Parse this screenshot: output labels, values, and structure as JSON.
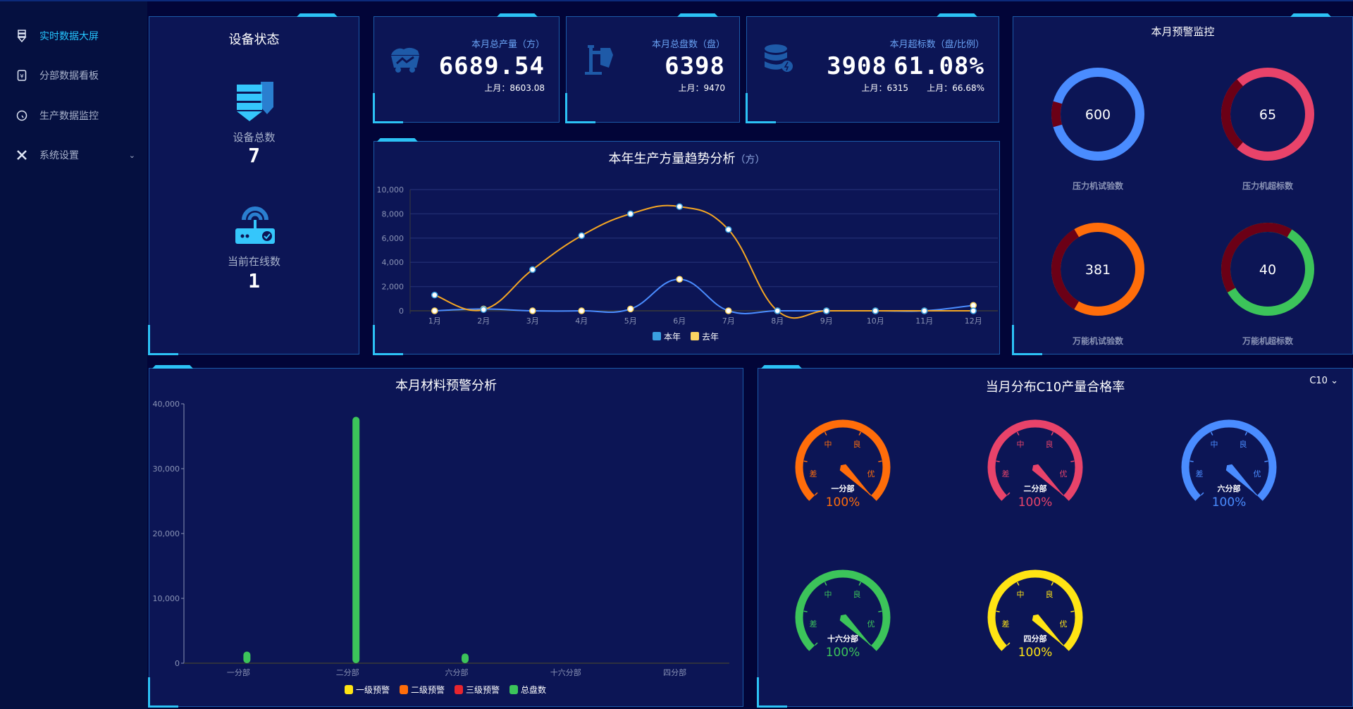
{
  "sidebar": {
    "items": [
      {
        "label": "实时数据大屏",
        "icon": "display-icon",
        "active": true
      },
      {
        "label": "分部数据看板",
        "icon": "yen-board-icon"
      },
      {
        "label": "生产数据监控",
        "icon": "gauge-icon"
      },
      {
        "label": "系统设置",
        "icon": "tools-icon",
        "has_submenu": true
      }
    ]
  },
  "device_status": {
    "title": "设备状态",
    "total_label": "设备总数",
    "total_value": "7",
    "online_label": "当前在线数",
    "online_value": "1"
  },
  "cards": [
    {
      "title": "本月总产量（方）",
      "value": "6689.54",
      "sub": "上月：8603.08",
      "icon": "mine-cart-icon"
    },
    {
      "title": "本月总盘数（盘）",
      "value": "6398",
      "sub": "上月：9470",
      "icon": "crane-icon"
    },
    {
      "title": "本月超标数（盘/比例）",
      "value": "3908",
      "value2": "61.08%",
      "sub": "上月：6315",
      "sub2": "上月：66.68%",
      "icon": "database-icon"
    }
  ],
  "trend": {
    "title": "本年生产方量趋势分析",
    "unit": "（方）",
    "chart_data": {
      "type": "line",
      "categories": [
        "1月",
        "2月",
        "3月",
        "4月",
        "5月",
        "6月",
        "7月",
        "8月",
        "9月",
        "10月",
        "11月",
        "12月"
      ],
      "ylim": [
        0,
        10000
      ],
      "yticks": [
        "0",
        "2,000",
        "4,000",
        "6,000",
        "8,000",
        "10,000"
      ],
      "grid": true,
      "legend": "bottom",
      "series": [
        {
          "name": "本年",
          "color": "#4a8cff",
          "values": [
            0,
            150,
            0,
            0,
            150,
            2600,
            0,
            0,
            0,
            0,
            0,
            450
          ]
        },
        {
          "name": "去年",
          "color": "#f5a623",
          "legend_color": "#fbd562",
          "values": [
            1300,
            100,
            3400,
            6200,
            8000,
            8600,
            6700,
            0,
            0,
            0,
            0,
            0
          ]
        }
      ]
    }
  },
  "warning": {
    "title": "本月预警监控",
    "donuts": [
      {
        "value": "600",
        "label": "压力机试验数",
        "color": "#4a8cff",
        "dark_fraction": 0.09
      },
      {
        "value": "65",
        "label": "压力机超标数",
        "color": "#e8436a",
        "dark_fraction": 0.27
      },
      {
        "value": "381",
        "label": "万能机试验数",
        "color": "#ff6d0a",
        "dark_fraction": 0.33
      },
      {
        "value": "40",
        "label": "万能机超标数",
        "color": "#3cc45a",
        "dark_fraction": 0.42
      }
    ],
    "dark_color": "#6b0016"
  },
  "material": {
    "title": "本月材料预警分析",
    "chart_data": {
      "type": "bar",
      "categories": [
        "一分部",
        "二分部",
        "六分部",
        "十六分部",
        "四分部"
      ],
      "ylim": [
        0,
        40000
      ],
      "yticks": [
        "0",
        "10,000",
        "20,000",
        "30,000",
        "40,000"
      ],
      "legend": "bottom",
      "series": [
        {
          "name": "一级预警",
          "color": "#ffe414",
          "values": [
            0,
            0,
            0,
            0,
            0
          ]
        },
        {
          "name": "二级预警",
          "color": "#ff6d0a",
          "values": [
            0,
            0,
            0,
            0,
            0
          ]
        },
        {
          "name": "三级预警",
          "color": "#e8252e",
          "values": [
            0,
            0,
            0,
            0,
            0
          ]
        },
        {
          "name": "总盘数",
          "color": "#3cc45a",
          "values": [
            1800,
            38000,
            1500,
            0,
            0
          ]
        }
      ]
    }
  },
  "quality": {
    "title": "当月分布C10产量合格率",
    "selector": "C10",
    "scale_labels": [
      "差",
      "中",
      "良",
      "优"
    ],
    "gauges": [
      {
        "name": "一分部",
        "value": "100%",
        "percent": 100,
        "color": "#ff6d0a"
      },
      {
        "name": "二分部",
        "value": "100%",
        "percent": 100,
        "color": "#e8436a"
      },
      {
        "name": "六分部",
        "value": "100%",
        "percent": 100,
        "color": "#4a8cff"
      },
      {
        "name": "十六分部",
        "value": "100%",
        "percent": 100,
        "color": "#3cc45a"
      },
      {
        "name": "四分部",
        "value": "100%",
        "percent": 100,
        "color": "#ffe414"
      }
    ]
  }
}
